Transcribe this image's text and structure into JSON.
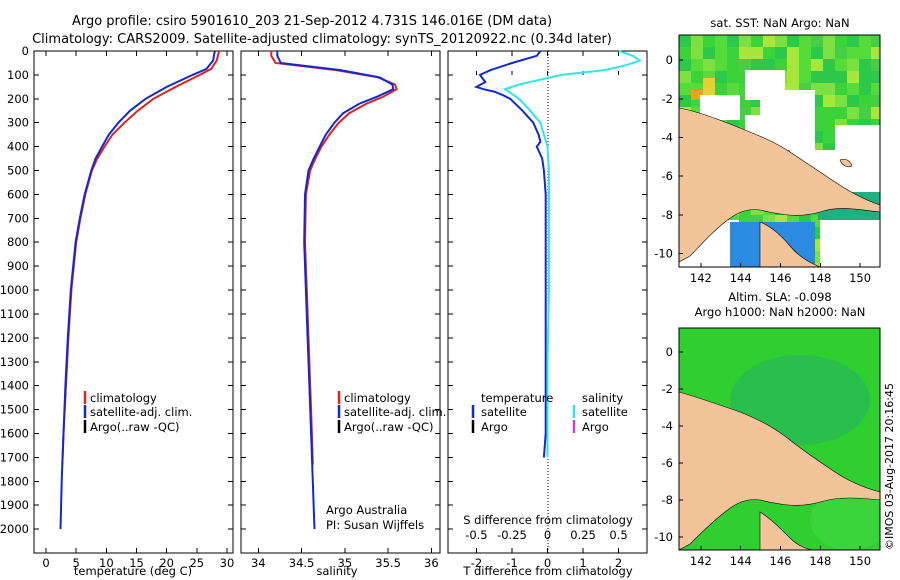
{
  "header": {
    "title_line1": "Argo profile: csiro 5901610_203 21-Sep-2012 4.731S 146.016E (DM data)",
    "title_line2": "Climatology: CARS2009. Satellite-adjusted climatology: synTS_20120922.nc (0.34d later)"
  },
  "colors": {
    "climatology": "#e0211f",
    "satellite": "#1029d0",
    "argo": "#000000",
    "salinity_satellite": "#33e6e6",
    "salinity_argo": "#d040d0",
    "land": "#f3c49a",
    "sea_green": "#2ecf2e",
    "sea_deep": "#1fae7a"
  },
  "chart_data": [
    {
      "type": "line",
      "name": "temperature-profile",
      "xlabel": "temperature (deg C)",
      "ylabel": "",
      "xlim": [
        -2,
        31
      ],
      "ylim": [
        2100,
        0
      ],
      "xticks": [
        "0",
        "5",
        "10",
        "15",
        "20",
        "25",
        "30"
      ],
      "xtick_values": [
        0,
        5,
        10,
        15,
        20,
        25,
        30
      ],
      "yticks": [
        "0",
        "100",
        "200",
        "300",
        "400",
        "500",
        "600",
        "700",
        "800",
        "900",
        "1000",
        "1100",
        "1200",
        "1300",
        "1400",
        "1500",
        "1600",
        "1700",
        "1800",
        "1900",
        "2000"
      ],
      "ytick_values": [
        0,
        100,
        200,
        300,
        400,
        500,
        600,
        700,
        800,
        900,
        1000,
        1100,
        1200,
        1300,
        1400,
        1500,
        1600,
        1700,
        1800,
        1900,
        2000
      ],
      "legend": [
        "climatology",
        "satellite-adj. clim.",
        "Argo(..raw -QC)"
      ],
      "series": [
        {
          "name": "climatology",
          "depth": [
            0,
            10,
            40,
            75,
            100,
            150,
            200,
            250,
            300,
            350,
            400,
            450,
            500,
            600,
            700,
            800,
            1000,
            1200,
            1400,
            1600,
            1730
          ],
          "values": [
            28.7,
            28.6,
            28.3,
            27.4,
            25.5,
            21.5,
            17.8,
            15.2,
            13.0,
            11.0,
            9.7,
            8.5,
            7.6,
            6.5,
            5.7,
            5.0,
            4.2,
            3.7,
            3.3,
            2.9,
            2.7
          ]
        },
        {
          "name": "satellite-adj. clim.",
          "depth": [
            0,
            10,
            40,
            75,
            100,
            150,
            200,
            250,
            300,
            350,
            400,
            450,
            500,
            600,
            700,
            800,
            1000,
            1200,
            1400,
            1600,
            1800,
            2000
          ],
          "values": [
            28.0,
            27.9,
            27.7,
            26.6,
            24.3,
            20.0,
            16.5,
            13.9,
            12.0,
            10.4,
            9.3,
            8.2,
            7.5,
            6.4,
            5.6,
            4.9,
            4.1,
            3.6,
            3.2,
            2.9,
            2.6,
            2.4
          ]
        }
      ]
    },
    {
      "type": "line",
      "name": "salinity-profile",
      "xlabel": "salinity",
      "xlim": [
        33.8,
        36.1
      ],
      "ylim": [
        2100,
        0
      ],
      "xticks": [
        "34",
        "34.5",
        "35",
        "35.5",
        "36"
      ],
      "xtick_values": [
        34,
        34.5,
        35,
        35.5,
        36
      ],
      "legend": [
        "climatology",
        "satellite-adj. clim.",
        "Argo(..raw -QC)"
      ],
      "annotation": [
        "Argo Australia",
        "PI: Susan Wijffels"
      ],
      "series": [
        {
          "name": "climatology",
          "depth": [
            0,
            20,
            50,
            80,
            110,
            140,
            160,
            190,
            220,
            260,
            300,
            350,
            400,
            450,
            500,
            600,
            800,
            1000,
            1200,
            1400,
            1600,
            1730
          ],
          "values": [
            34.15,
            34.15,
            34.2,
            34.9,
            35.38,
            35.58,
            35.6,
            35.45,
            35.25,
            35.05,
            34.93,
            34.82,
            34.73,
            34.66,
            34.6,
            34.55,
            34.54,
            34.56,
            34.58,
            34.6,
            34.62,
            34.63
          ]
        },
        {
          "name": "satellite-adj. clim.",
          "depth": [
            0,
            20,
            50,
            80,
            110,
            140,
            160,
            190,
            220,
            260,
            300,
            350,
            400,
            450,
            500,
            600,
            800,
            1000,
            1200,
            1400,
            1600,
            1800,
            2000
          ],
          "values": [
            34.22,
            34.22,
            34.26,
            34.95,
            35.4,
            35.55,
            35.56,
            35.38,
            35.17,
            34.98,
            34.88,
            34.78,
            34.71,
            34.64,
            34.58,
            34.54,
            34.53,
            34.55,
            34.57,
            34.59,
            34.61,
            34.63,
            34.65
          ]
        }
      ]
    },
    {
      "type": "line",
      "name": "difference-profile",
      "xlabel_bottom": "T difference from climatology",
      "xlabel_top": "S difference from climatology",
      "xlim": [
        -2.8,
        2.8
      ],
      "ylim": [
        2100,
        0
      ],
      "xticks": [
        "-2",
        "-1",
        "0",
        "1",
        "2"
      ],
      "xtick_values": [
        -2,
        -1,
        0,
        1,
        2
      ],
      "sticks": [
        "-0.5",
        "-0.25",
        "0",
        "0.25",
        "0.5"
      ],
      "stick_values": [
        -0.5,
        -0.25,
        0,
        0.25,
        0.5
      ],
      "legend_temperature_title": "temperature",
      "legend_salinity_title": "salinity",
      "legend_entries": [
        "satellite",
        "Argo"
      ],
      "series": [
        {
          "name": "temperature satellite",
          "depth": [
            0,
            20,
            50,
            80,
            100,
            130,
            150,
            160,
            170,
            185,
            200,
            250,
            300,
            350,
            380,
            400,
            450,
            500,
            600,
            800,
            1000,
            1200,
            1400,
            1600,
            1700
          ],
          "values": [
            -0.2,
            -0.3,
            -1.0,
            -1.6,
            -1.9,
            -1.75,
            -2.0,
            -1.8,
            -1.5,
            -1.25,
            -1.05,
            -0.7,
            -0.4,
            -0.25,
            -0.2,
            -0.3,
            -0.15,
            -0.1,
            -0.05,
            -0.05,
            -0.05,
            -0.05,
            -0.05,
            -0.05,
            -0.1
          ]
        },
        {
          "name": "salinity satellite",
          "depth": [
            0,
            20,
            40,
            60,
            80,
            100,
            120,
            140,
            160,
            180,
            200,
            250,
            300,
            400,
            500,
            800,
            1000,
            1300,
            1600,
            1700
          ],
          "values": [
            0.5,
            0.6,
            0.65,
            0.55,
            0.4,
            0.1,
            -0.05,
            -0.2,
            -0.3,
            -0.25,
            -0.2,
            -0.12,
            -0.05,
            0.0,
            0.01,
            0.01,
            0.01,
            0.0,
            0.0,
            0.0
          ]
        }
      ]
    }
  ],
  "maps": {
    "sst": {
      "title": "sat. SST: NaN Argo: NaN",
      "xticks": [
        "142",
        "144",
        "146",
        "148",
        "150"
      ],
      "yticks": [
        "0",
        "-2",
        "-4",
        "-6",
        "-8",
        "-10"
      ]
    },
    "sla": {
      "title_line1": "Altim. SLA: -0.098",
      "title_line2": "Argo h1000: NaN h2000: NaN",
      "xticks": [
        "142",
        "144",
        "146",
        "148",
        "150"
      ],
      "yticks": [
        "0",
        "-2",
        "-4",
        "-6",
        "-8",
        "-10"
      ]
    },
    "lon_range": [
      140.9,
      151.0
    ],
    "lat_range": [
      -10.7,
      1.3
    ]
  },
  "side_label": "©IMOS 03-Aug-2017 20:16:45"
}
